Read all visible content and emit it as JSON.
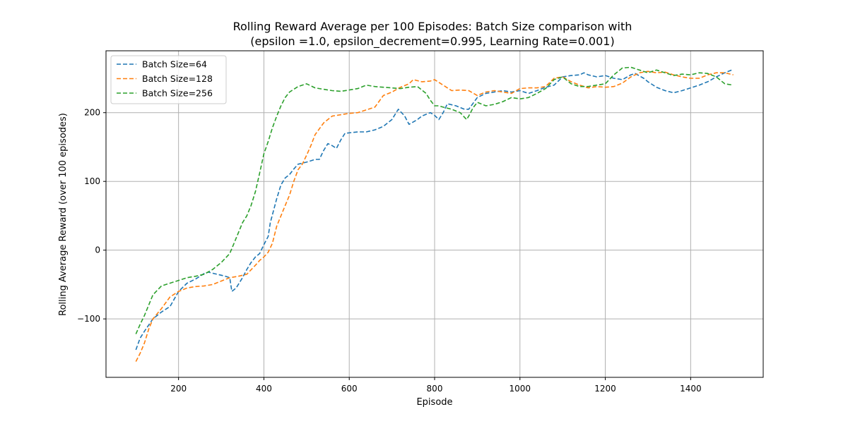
{
  "colors": {
    "series_64": "#1f77b4",
    "series_128": "#ff7f0e",
    "series_256": "#2ca02c",
    "grid": "#b0b0b0",
    "axis": "#000000"
  },
  "chart_data": {
    "type": "line",
    "title": [
      "Rolling Reward Average per 100 Episodes: Batch Size comparison with",
      "(epsilon =1.0, epsilon_decrement=0.995, Learning Rate=0.001)"
    ],
    "xlabel": "Episode",
    "ylabel": "Rolling Average Reward (over 100 episodes)",
    "xlim": [
      30,
      1570
    ],
    "ylim": [
      -185,
      290
    ],
    "xticks": [
      200,
      400,
      600,
      800,
      1000,
      1200,
      1400
    ],
    "yticks": [
      -100,
      0,
      100,
      200
    ],
    "ytick_labels": [
      "−100",
      "0",
      "100",
      "200"
    ],
    "grid": true,
    "line_style": "dashed",
    "legend_position": "top-left",
    "series": [
      {
        "name": "Batch Size=64",
        "color": "#1f77b4",
        "points": [
          [
            100,
            -145
          ],
          [
            110,
            -128
          ],
          [
            120,
            -118
          ],
          [
            140,
            -100
          ],
          [
            160,
            -90
          ],
          [
            180,
            -82
          ],
          [
            200,
            -60
          ],
          [
            220,
            -48
          ],
          [
            240,
            -42
          ],
          [
            260,
            -34
          ],
          [
            270,
            -32
          ],
          [
            290,
            -35
          ],
          [
            310,
            -38
          ],
          [
            320,
            -40
          ],
          [
            325,
            -60
          ],
          [
            335,
            -55
          ],
          [
            350,
            -40
          ],
          [
            360,
            -28
          ],
          [
            370,
            -18
          ],
          [
            380,
            -10
          ],
          [
            390,
            -5
          ],
          [
            400,
            8
          ],
          [
            410,
            20
          ],
          [
            415,
            40
          ],
          [
            430,
            75
          ],
          [
            440,
            95
          ],
          [
            450,
            105
          ],
          [
            460,
            110
          ],
          [
            470,
            118
          ],
          [
            480,
            125
          ],
          [
            500,
            128
          ],
          [
            520,
            132
          ],
          [
            530,
            132
          ],
          [
            540,
            145
          ],
          [
            550,
            155
          ],
          [
            560,
            152
          ],
          [
            570,
            148
          ],
          [
            580,
            160
          ],
          [
            590,
            170
          ],
          [
            620,
            172
          ],
          [
            640,
            172
          ],
          [
            660,
            175
          ],
          [
            680,
            180
          ],
          [
            700,
            190
          ],
          [
            710,
            200
          ],
          [
            715,
            205
          ],
          [
            730,
            195
          ],
          [
            740,
            183
          ],
          [
            760,
            190
          ],
          [
            770,
            195
          ],
          [
            790,
            200
          ],
          [
            800,
            196
          ],
          [
            810,
            190
          ],
          [
            820,
            200
          ],
          [
            830,
            213
          ],
          [
            850,
            210
          ],
          [
            870,
            205
          ],
          [
            880,
            205
          ],
          [
            900,
            222
          ],
          [
            920,
            228
          ],
          [
            940,
            230
          ],
          [
            960,
            232
          ],
          [
            980,
            230
          ],
          [
            1000,
            232
          ],
          [
            1020,
            228
          ],
          [
            1040,
            232
          ],
          [
            1060,
            237
          ],
          [
            1080,
            240
          ],
          [
            1100,
            252
          ],
          [
            1120,
            254
          ],
          [
            1140,
            255
          ],
          [
            1150,
            258
          ],
          [
            1160,
            255
          ],
          [
            1180,
            252
          ],
          [
            1200,
            254
          ],
          [
            1220,
            250
          ],
          [
            1240,
            248
          ],
          [
            1260,
            255
          ],
          [
            1270,
            257
          ],
          [
            1290,
            250
          ],
          [
            1300,
            245
          ],
          [
            1320,
            237
          ],
          [
            1340,
            232
          ],
          [
            1360,
            229
          ],
          [
            1380,
            232
          ],
          [
            1400,
            236
          ],
          [
            1420,
            240
          ],
          [
            1440,
            245
          ],
          [
            1460,
            252
          ],
          [
            1480,
            258
          ],
          [
            1500,
            263
          ]
        ]
      },
      {
        "name": "Batch Size=128",
        "color": "#ff7f0e",
        "points": [
          [
            100,
            -162
          ],
          [
            110,
            -150
          ],
          [
            120,
            -135
          ],
          [
            130,
            -115
          ],
          [
            140,
            -100
          ],
          [
            160,
            -85
          ],
          [
            180,
            -68
          ],
          [
            200,
            -60
          ],
          [
            220,
            -55
          ],
          [
            240,
            -53
          ],
          [
            260,
            -52
          ],
          [
            280,
            -50
          ],
          [
            300,
            -45
          ],
          [
            320,
            -40
          ],
          [
            340,
            -38
          ],
          [
            360,
            -35
          ],
          [
            380,
            -22
          ],
          [
            390,
            -15
          ],
          [
            400,
            -10
          ],
          [
            410,
            -3
          ],
          [
            420,
            10
          ],
          [
            430,
            35
          ],
          [
            450,
            65
          ],
          [
            460,
            80
          ],
          [
            470,
            100
          ],
          [
            480,
            117
          ],
          [
            490,
            125
          ],
          [
            500,
            138
          ],
          [
            510,
            152
          ],
          [
            520,
            168
          ],
          [
            540,
            185
          ],
          [
            560,
            195
          ],
          [
            580,
            197
          ],
          [
            600,
            199
          ],
          [
            620,
            200
          ],
          [
            640,
            204
          ],
          [
            660,
            208
          ],
          [
            680,
            225
          ],
          [
            700,
            230
          ],
          [
            720,
            237
          ],
          [
            740,
            242
          ],
          [
            750,
            248
          ],
          [
            770,
            245
          ],
          [
            790,
            246
          ],
          [
            800,
            248
          ],
          [
            820,
            240
          ],
          [
            840,
            232
          ],
          [
            860,
            233
          ],
          [
            880,
            232
          ],
          [
            900,
            225
          ],
          [
            920,
            230
          ],
          [
            940,
            232
          ],
          [
            960,
            230
          ],
          [
            980,
            228
          ],
          [
            1000,
            235
          ],
          [
            1020,
            236
          ],
          [
            1040,
            236
          ],
          [
            1060,
            238
          ],
          [
            1080,
            250
          ],
          [
            1100,
            252
          ],
          [
            1120,
            245
          ],
          [
            1140,
            240
          ],
          [
            1160,
            236
          ],
          [
            1180,
            238
          ],
          [
            1200,
            237
          ],
          [
            1220,
            238
          ],
          [
            1240,
            243
          ],
          [
            1260,
            252
          ],
          [
            1280,
            258
          ],
          [
            1300,
            260
          ],
          [
            1320,
            258
          ],
          [
            1340,
            259
          ],
          [
            1360,
            255
          ],
          [
            1380,
            252
          ],
          [
            1400,
            250
          ],
          [
            1420,
            250
          ],
          [
            1440,
            255
          ],
          [
            1460,
            258
          ],
          [
            1480,
            258
          ],
          [
            1500,
            255
          ]
        ]
      },
      {
        "name": "Batch Size=256",
        "color": "#2ca02c",
        "points": [
          [
            100,
            -122
          ],
          [
            110,
            -108
          ],
          [
            120,
            -95
          ],
          [
            130,
            -80
          ],
          [
            140,
            -65
          ],
          [
            160,
            -52
          ],
          [
            180,
            -48
          ],
          [
            200,
            -44
          ],
          [
            220,
            -40
          ],
          [
            240,
            -38
          ],
          [
            260,
            -35
          ],
          [
            280,
            -28
          ],
          [
            300,
            -18
          ],
          [
            320,
            -5
          ],
          [
            330,
            10
          ],
          [
            340,
            25
          ],
          [
            350,
            40
          ],
          [
            360,
            50
          ],
          [
            370,
            65
          ],
          [
            380,
            85
          ],
          [
            390,
            112
          ],
          [
            400,
            140
          ],
          [
            410,
            158
          ],
          [
            420,
            178
          ],
          [
            430,
            195
          ],
          [
            440,
            210
          ],
          [
            450,
            222
          ],
          [
            460,
            230
          ],
          [
            480,
            238
          ],
          [
            500,
            242
          ],
          [
            520,
            236
          ],
          [
            540,
            234
          ],
          [
            560,
            232
          ],
          [
            580,
            231
          ],
          [
            600,
            233
          ],
          [
            620,
            235
          ],
          [
            640,
            240
          ],
          [
            660,
            238
          ],
          [
            680,
            237
          ],
          [
            700,
            236
          ],
          [
            720,
            235
          ],
          [
            740,
            237
          ],
          [
            760,
            238
          ],
          [
            780,
            228
          ],
          [
            790,
            218
          ],
          [
            800,
            210
          ],
          [
            810,
            210
          ],
          [
            820,
            208
          ],
          [
            840,
            205
          ],
          [
            860,
            200
          ],
          [
            875,
            190
          ],
          [
            880,
            195
          ],
          [
            890,
            207
          ],
          [
            900,
            215
          ],
          [
            920,
            210
          ],
          [
            940,
            212
          ],
          [
            960,
            216
          ],
          [
            980,
            222
          ],
          [
            1000,
            220
          ],
          [
            1020,
            222
          ],
          [
            1040,
            228
          ],
          [
            1060,
            235
          ],
          [
            1080,
            248
          ],
          [
            1100,
            252
          ],
          [
            1120,
            242
          ],
          [
            1140,
            238
          ],
          [
            1160,
            238
          ],
          [
            1180,
            240
          ],
          [
            1200,
            242
          ],
          [
            1220,
            255
          ],
          [
            1240,
            265
          ],
          [
            1260,
            266
          ],
          [
            1280,
            262
          ],
          [
            1300,
            258
          ],
          [
            1320,
            262
          ],
          [
            1340,
            258
          ],
          [
            1360,
            254
          ],
          [
            1380,
            256
          ],
          [
            1400,
            255
          ],
          [
            1420,
            258
          ],
          [
            1440,
            257
          ],
          [
            1460,
            252
          ],
          [
            1480,
            242
          ],
          [
            1500,
            240
          ]
        ]
      }
    ]
  }
}
